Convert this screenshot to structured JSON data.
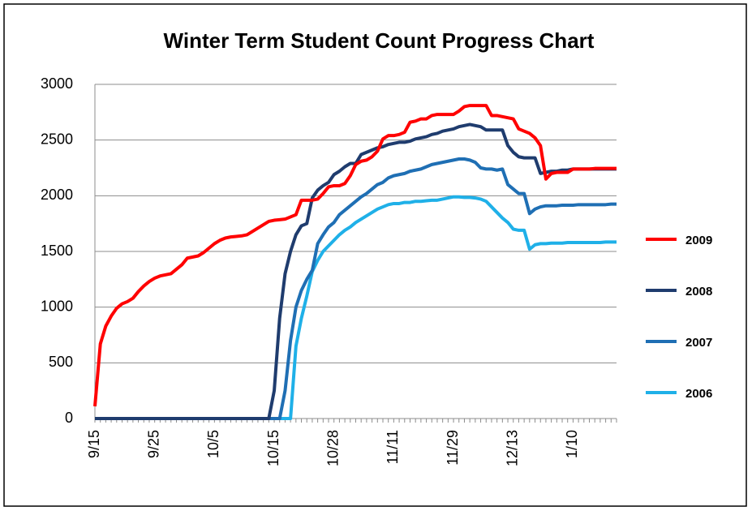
{
  "chart_data": {
    "type": "line",
    "title": "Winter Term Student Count Progress Chart",
    "categories": [
      "9/15",
      null,
      null,
      null,
      null,
      null,
      null,
      null,
      null,
      null,
      null,
      "9/25",
      null,
      null,
      null,
      null,
      null,
      null,
      null,
      null,
      null,
      null,
      "10/5",
      null,
      null,
      null,
      null,
      null,
      null,
      null,
      null,
      null,
      null,
      "10/15",
      null,
      null,
      null,
      null,
      null,
      null,
      null,
      null,
      null,
      null,
      "10/28",
      null,
      null,
      null,
      null,
      null,
      null,
      null,
      null,
      null,
      null,
      "11/11",
      null,
      null,
      null,
      null,
      null,
      null,
      null,
      null,
      null,
      null,
      "11/29",
      null,
      null,
      null,
      null,
      null,
      null,
      null,
      null,
      null,
      null,
      "12/13",
      null,
      null,
      null,
      null,
      null,
      null,
      null,
      null,
      null,
      null,
      "1/10",
      null,
      null,
      null,
      null,
      null,
      null,
      null,
      null
    ],
    "series": [
      {
        "name": "2009",
        "color": "#ff0000",
        "values": [
          110,
          670,
          830,
          920,
          990,
          1030,
          1050,
          1080,
          1140,
          1190,
          1230,
          1260,
          1280,
          1290,
          1300,
          1340,
          1380,
          1440,
          1450,
          1460,
          1490,
          1530,
          1570,
          1600,
          1620,
          1630,
          1635,
          1640,
          1650,
          1680,
          1710,
          1740,
          1770,
          1780,
          1785,
          1790,
          1810,
          1830,
          1960,
          1960,
          1960,
          1970,
          2020,
          2080,
          2090,
          2090,
          2110,
          2180,
          2280,
          2310,
          2320,
          2350,
          2400,
          2510,
          2540,
          2540,
          2550,
          2570,
          2660,
          2670,
          2690,
          2690,
          2720,
          2730,
          2730,
          2730,
          2730,
          2760,
          2800,
          2810,
          2810,
          2810,
          2810,
          2720,
          2720,
          2710,
          2700,
          2690,
          2600,
          2580,
          2560,
          2520,
          2450,
          2150,
          2200,
          2210,
          2210,
          2210,
          2240,
          2240,
          2240,
          2240,
          2245,
          2245,
          2245,
          2245,
          2245
        ]
      },
      {
        "name": "2008",
        "color": "#1f3c6e",
        "values": [
          0,
          0,
          0,
          0,
          0,
          0,
          0,
          0,
          0,
          0,
          0,
          0,
          0,
          0,
          0,
          0,
          0,
          0,
          0,
          0,
          0,
          0,
          0,
          0,
          0,
          0,
          0,
          0,
          0,
          0,
          0,
          0,
          0,
          250,
          900,
          1300,
          1500,
          1650,
          1730,
          1750,
          1980,
          2050,
          2090,
          2120,
          2190,
          2220,
          2260,
          2290,
          2290,
          2370,
          2390,
          2410,
          2430,
          2440,
          2460,
          2470,
          2480,
          2480,
          2490,
          2510,
          2520,
          2530,
          2550,
          2560,
          2580,
          2590,
          2600,
          2620,
          2630,
          2640,
          2630,
          2620,
          2590,
          2590,
          2590,
          2590,
          2450,
          2390,
          2350,
          2340,
          2340,
          2340,
          2200,
          2210,
          2220,
          2220,
          2230,
          2230,
          2240,
          2240,
          2240,
          2240,
          2240,
          2240,
          2240,
          2240,
          2240
        ]
      },
      {
        "name": "2007",
        "color": "#1f6fb4",
        "values": [
          0,
          0,
          0,
          0,
          0,
          0,
          0,
          0,
          0,
          0,
          0,
          0,
          0,
          0,
          0,
          0,
          0,
          0,
          0,
          0,
          0,
          0,
          0,
          0,
          0,
          0,
          0,
          0,
          0,
          0,
          0,
          0,
          0,
          0,
          0,
          250,
          700,
          1000,
          1150,
          1250,
          1330,
          1570,
          1650,
          1720,
          1760,
          1830,
          1870,
          1910,
          1950,
          1990,
          2020,
          2060,
          2100,
          2120,
          2160,
          2180,
          2190,
          2200,
          2220,
          2230,
          2240,
          2260,
          2280,
          2290,
          2300,
          2310,
          2320,
          2330,
          2330,
          2320,
          2300,
          2250,
          2240,
          2240,
          2230,
          2240,
          2100,
          2060,
          2020,
          2020,
          1840,
          1880,
          1900,
          1910,
          1910,
          1910,
          1915,
          1915,
          1915,
          1920,
          1920,
          1920,
          1920,
          1920,
          1920,
          1925,
          1925
        ]
      },
      {
        "name": "2006",
        "color": "#1fb0e8",
        "values": [
          0,
          0,
          0,
          0,
          0,
          0,
          0,
          0,
          0,
          0,
          0,
          0,
          0,
          0,
          0,
          0,
          0,
          0,
          0,
          0,
          0,
          0,
          0,
          0,
          0,
          0,
          0,
          0,
          0,
          0,
          0,
          0,
          0,
          0,
          0,
          0,
          0,
          650,
          900,
          1100,
          1320,
          1420,
          1500,
          1550,
          1600,
          1650,
          1690,
          1720,
          1760,
          1790,
          1820,
          1850,
          1880,
          1900,
          1920,
          1930,
          1930,
          1940,
          1940,
          1950,
          1950,
          1955,
          1960,
          1960,
          1970,
          1980,
          1990,
          1990,
          1985,
          1985,
          1980,
          1970,
          1950,
          1900,
          1850,
          1800,
          1760,
          1700,
          1690,
          1690,
          1520,
          1560,
          1570,
          1570,
          1575,
          1575,
          1575,
          1580,
          1580,
          1580,
          1580,
          1580,
          1580,
          1580,
          1585,
          1585,
          1585
        ]
      }
    ],
    "ylim": [
      0,
      3000
    ],
    "yticks": [
      0,
      500,
      1000,
      1500,
      2000,
      2500,
      3000
    ],
    "grid": true,
    "legend": "right"
  }
}
